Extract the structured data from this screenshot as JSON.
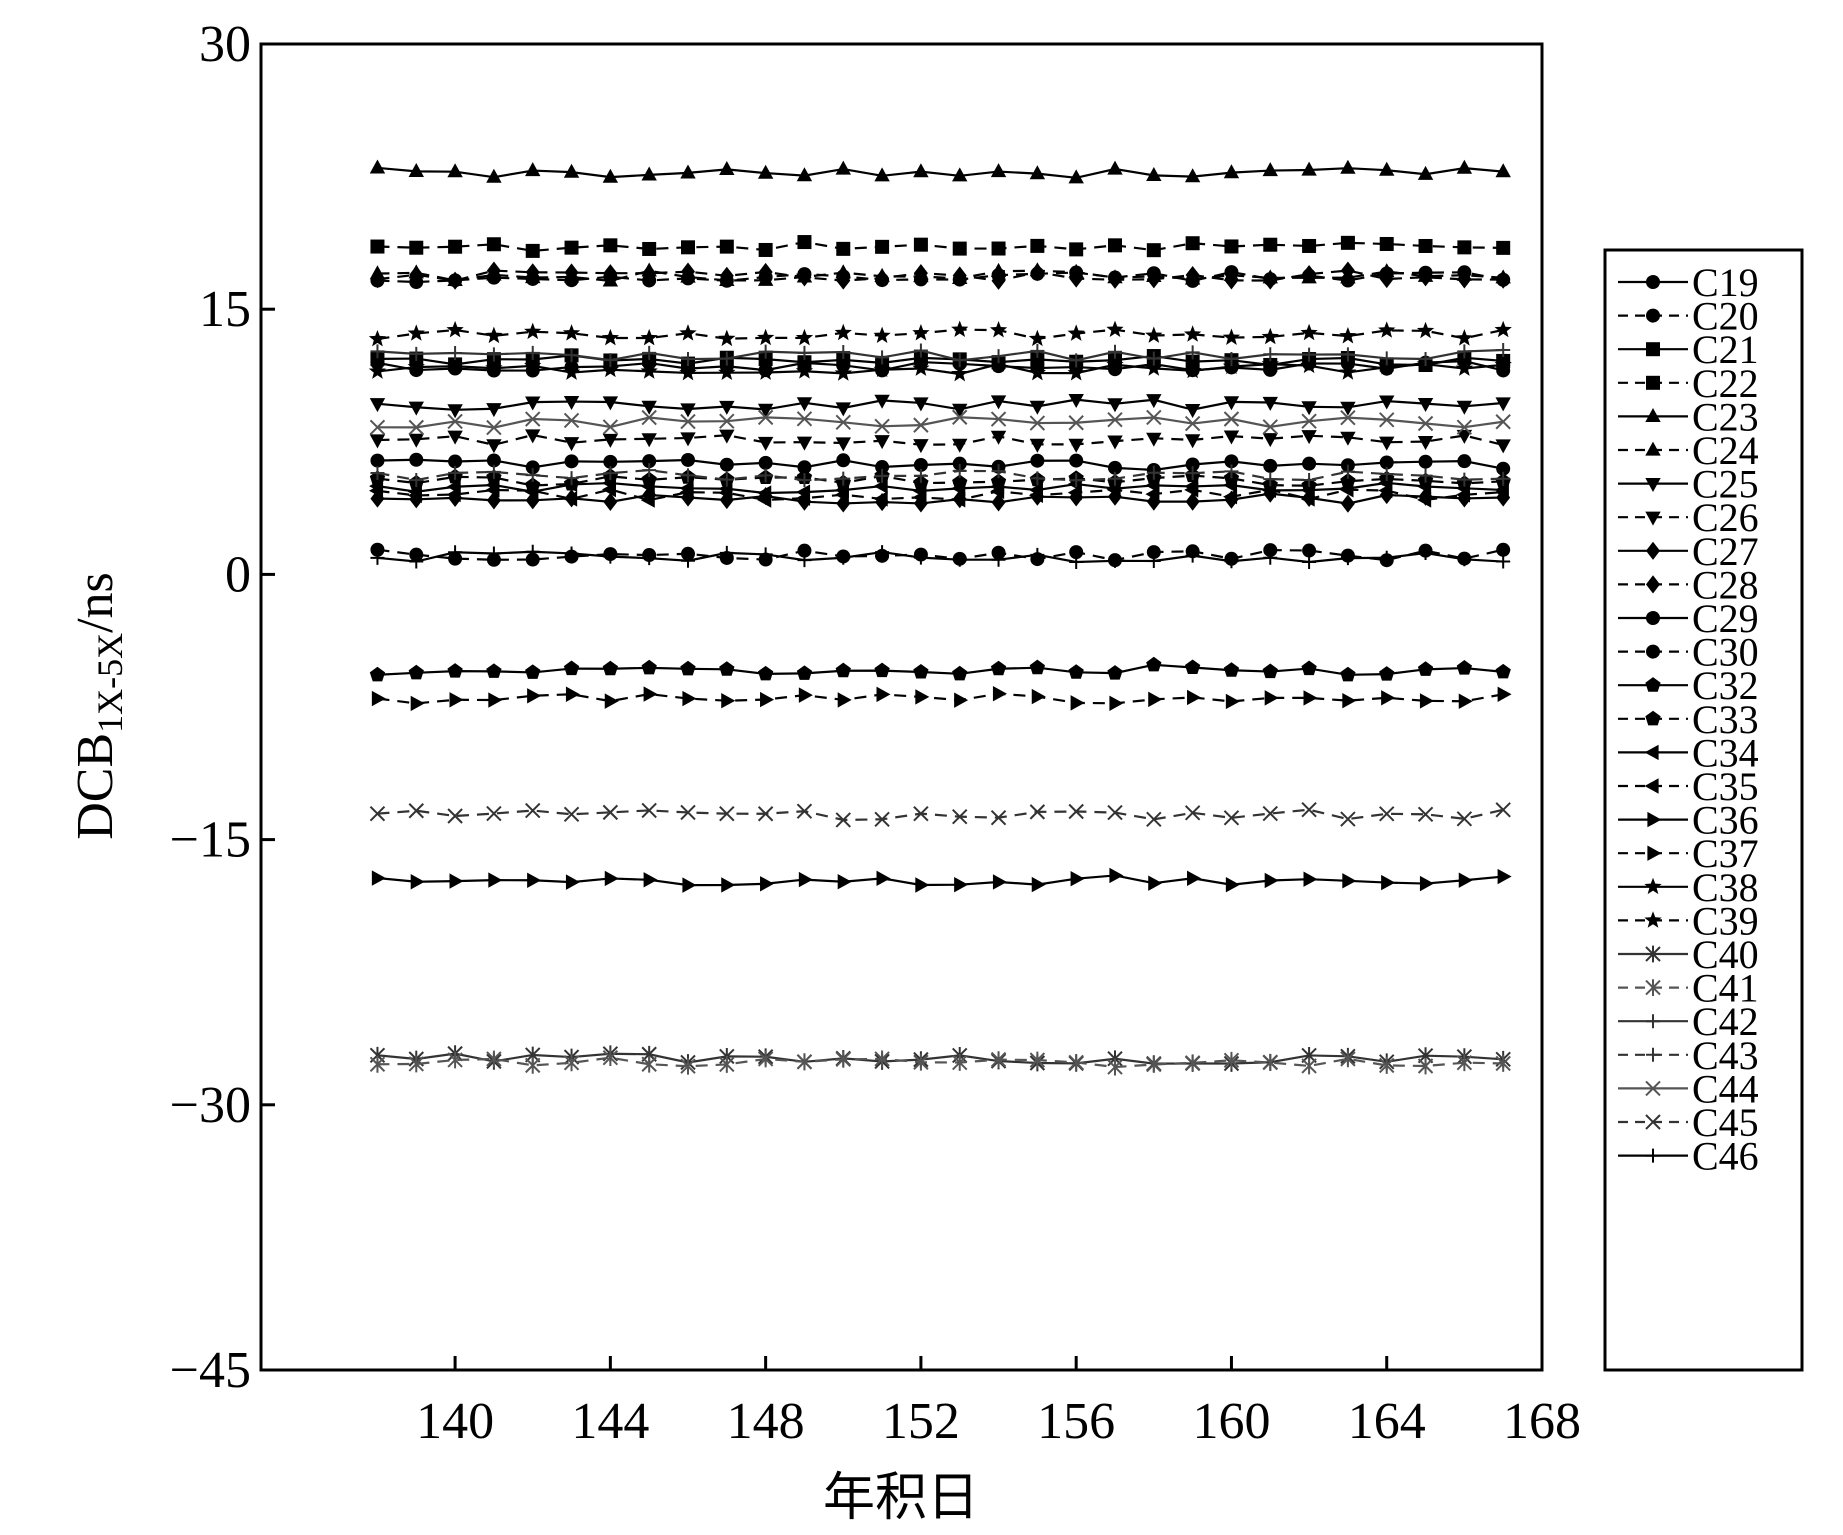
{
  "chart_data": {
    "type": "line",
    "title": "",
    "xlabel": "年积日",
    "ylabel": "DCB",
    "ylabel_subscript": "1X-5X",
    "ylabel_unit": "/ns",
    "xlim": [
      135,
      168
    ],
    "ylim": [
      -45,
      30
    ],
    "xticks": [
      140,
      144,
      148,
      152,
      156,
      160,
      164,
      168
    ],
    "yticks": [
      -45,
      -30,
      -15,
      0,
      15,
      30
    ],
    "ytick_labels": [
      "−45",
      "−30",
      "−15",
      "0",
      "15",
      "30"
    ],
    "grid": false,
    "legend_position": "right",
    "series": [
      {
        "name": "C19",
        "marker": "circle",
        "dash": "solid",
        "color": "#000000",
        "x_start": 138,
        "x_end": 167,
        "base": 11.8
      },
      {
        "name": "C20",
        "marker": "circle",
        "dash": "dashed",
        "color": "#000000",
        "x_start": 138,
        "x_end": 167,
        "base": 16.8
      },
      {
        "name": "C21",
        "marker": "square",
        "dash": "solid",
        "color": "#000000",
        "x_start": 138,
        "x_end": 167,
        "base": 12.1
      },
      {
        "name": "C22",
        "marker": "square",
        "dash": "dashed",
        "color": "#000000",
        "x_start": 138,
        "x_end": 167,
        "base": 18.5
      },
      {
        "name": "C23",
        "marker": "triangle-up",
        "dash": "solid",
        "color": "#000000",
        "x_start": 138,
        "x_end": 167,
        "base": 22.7
      },
      {
        "name": "C24",
        "marker": "triangle-up",
        "dash": "dashed",
        "color": "#000000",
        "x_start": 138,
        "x_end": 167,
        "base": 16.9
      },
      {
        "name": "C25",
        "marker": "triangle-down",
        "dash": "solid",
        "color": "#000000",
        "x_start": 138,
        "x_end": 167,
        "base": 9.6
      },
      {
        "name": "C26",
        "marker": "triangle-down",
        "dash": "dashed",
        "color": "#000000",
        "x_start": 138,
        "x_end": 167,
        "base": 7.6
      },
      {
        "name": "C27",
        "marker": "diamond",
        "dash": "solid",
        "color": "#000000",
        "x_start": 138,
        "x_end": 167,
        "base": 4.3
      },
      {
        "name": "C28",
        "marker": "diamond",
        "dash": "dashed",
        "color": "#000000",
        "x_start": 138,
        "x_end": 167,
        "base": 16.9
      },
      {
        "name": "C29",
        "marker": "hexagon",
        "dash": "solid",
        "color": "#000000",
        "x_start": 138,
        "x_end": 167,
        "base": 6.2
      },
      {
        "name": "C30",
        "marker": "hexagon",
        "dash": "dashed",
        "color": "#000000",
        "x_start": 138,
        "x_end": 167,
        "base": 1.1
      },
      {
        "name": "C32",
        "marker": "pentagon",
        "dash": "solid",
        "color": "#000000",
        "x_start": 138,
        "x_end": 167,
        "base": -5.4
      },
      {
        "name": "C33",
        "marker": "pentagon",
        "dash": "dashed",
        "color": "#000000",
        "x_start": 138,
        "x_end": 167,
        "base": 5.3
      },
      {
        "name": "C34",
        "marker": "triangle-left",
        "dash": "solid",
        "color": "#000000",
        "x_start": 138,
        "x_end": 167,
        "base": 4.9
      },
      {
        "name": "C35",
        "marker": "triangle-left",
        "dash": "dashed",
        "color": "#000000",
        "x_start": 138,
        "x_end": 167,
        "base": 4.5
      },
      {
        "name": "C36",
        "marker": "triangle-right",
        "dash": "solid",
        "color": "#000000",
        "x_start": 138,
        "x_end": 167,
        "base": -17.3
      },
      {
        "name": "C37",
        "marker": "triangle-right",
        "dash": "dashed",
        "color": "#000000",
        "x_start": 138,
        "x_end": 167,
        "base": -7.0
      },
      {
        "name": "C38",
        "marker": "star",
        "dash": "solid",
        "color": "#000000",
        "x_start": 138,
        "x_end": 167,
        "base": 11.6
      },
      {
        "name": "C39",
        "marker": "star",
        "dash": "dashed",
        "color": "#000000",
        "x_start": 138,
        "x_end": 167,
        "base": 13.6
      },
      {
        "name": "C40",
        "marker": "asterisk",
        "dash": "solid",
        "color": "#333333",
        "x_start": 138,
        "x_end": 167,
        "base": -27.4
      },
      {
        "name": "C41",
        "marker": "asterisk",
        "dash": "dashed",
        "color": "#555555",
        "x_start": 138,
        "x_end": 167,
        "base": -27.6
      },
      {
        "name": "C42",
        "marker": "plus",
        "dash": "solid",
        "color": "#333333",
        "x_start": 138,
        "x_end": 167,
        "base": 12.4
      },
      {
        "name": "C43",
        "marker": "plus",
        "dash": "dashed",
        "color": "#333333",
        "x_start": 138,
        "x_end": 167,
        "base": 5.6
      },
      {
        "name": "C44",
        "marker": "x",
        "dash": "solid",
        "color": "#555555",
        "x_start": 138,
        "x_end": 167,
        "base": 8.6
      },
      {
        "name": "C45",
        "marker": "x",
        "dash": "dashed",
        "color": "#333333",
        "x_start": 138,
        "x_end": 167,
        "base": -13.6
      },
      {
        "name": "C46",
        "marker": "plus",
        "dash": "solid",
        "color": "#000000",
        "x_start": 138,
        "x_end": 167,
        "base": 1.0
      }
    ]
  }
}
